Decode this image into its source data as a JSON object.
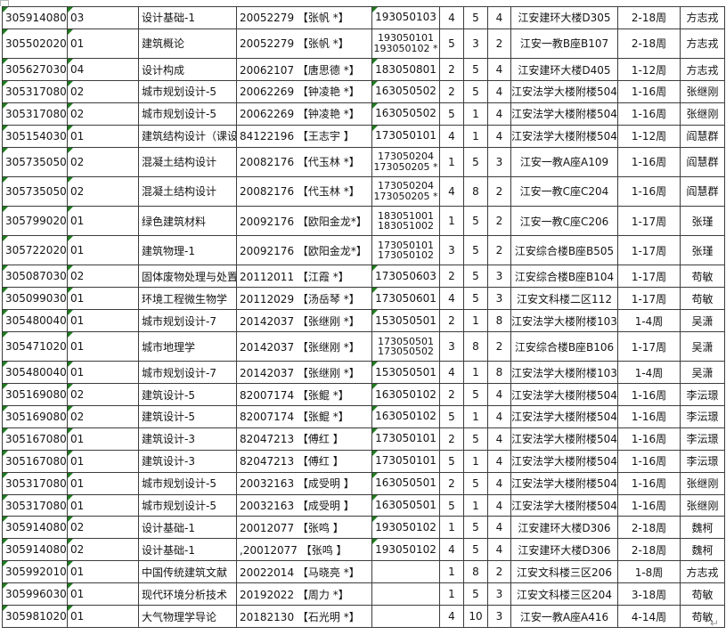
{
  "artifacts": {
    "return_mark": "↵"
  },
  "colors": {
    "grid_border": "#3d3d3d",
    "indicator_green": "#1e7d1e",
    "background": "#ffffff"
  },
  "table": {
    "rows": [
      {
        "code": "305914080",
        "cls": "03",
        "course": "设计基础-1",
        "teacher_info": "20052279 【张帆 *】",
        "classes": [
          "193050103"
        ],
        "tri5": true,
        "n1": "4",
        "n2": "5",
        "n3": "4",
        "location": "江安建环大楼D305",
        "weeks": "2-18周",
        "teacher": "方志戎"
      },
      {
        "code": "305502020",
        "cls": "01",
        "course": "建筑概论",
        "teacher_info": "20052279 【张帆 *】",
        "classes": [
          "193050101",
          "193050102 *"
        ],
        "tri5": false,
        "n1": "5",
        "n2": "3",
        "n3": "2",
        "location": "江安一教B座B107",
        "weeks": "2-18周",
        "teacher": "方志戎"
      },
      {
        "code": "305627030",
        "cls": "04",
        "course": "设计构成",
        "teacher_info": "20062107 【唐思德 *】",
        "classes": [
          "183050801"
        ],
        "tri5": true,
        "n1": "2",
        "n2": "5",
        "n3": "4",
        "location": "江安建环大楼D405",
        "weeks": "1-12周",
        "teacher": "方志戎"
      },
      {
        "code": "305317080",
        "cls": "02",
        "course": "城市规划设计-5",
        "teacher_info": "20062269 【钟凌艳 *】",
        "classes": [
          "163050502"
        ],
        "tri5": true,
        "n1": "2",
        "n2": "5",
        "n3": "4",
        "location": "江安法学大楼附楼5046",
        "weeks": "1-16周",
        "teacher": "张继刚"
      },
      {
        "code": "305317080",
        "cls": "02",
        "course": "城市规划设计-5",
        "teacher_info": "20062269 【钟凌艳 *】",
        "classes": [
          "163050502"
        ],
        "tri5": true,
        "n1": "5",
        "n2": "1",
        "n3": "4",
        "location": "江安法学大楼附楼5046",
        "weeks": "1-16周",
        "teacher": "张继刚"
      },
      {
        "code": "305154030",
        "cls": "01",
        "course": "建筑结构设计（课设）",
        "teacher_info": "84122196 【王志宇 】",
        "classes": [
          "173050101"
        ],
        "tri5": true,
        "n1": "4",
        "n2": "1",
        "n3": "4",
        "location": "江安法学大楼附楼5045-1",
        "weeks": "1-12周",
        "teacher": "阎慧群"
      },
      {
        "code": "305735050",
        "cls": "02",
        "course": "混凝土结构设计",
        "teacher_info": "20082176 【代玉林 *】",
        "classes": [
          "173050204",
          "173050205 *"
        ],
        "tri5": false,
        "n1": "1",
        "n2": "5",
        "n3": "3",
        "location": "江安一教A座A109",
        "weeks": "1-16周",
        "teacher": "阎慧群"
      },
      {
        "code": "305735050",
        "cls": "02",
        "course": "混凝土结构设计",
        "teacher_info": "20082176 【代玉林 *】",
        "classes": [
          "173050204",
          "173050205 *"
        ],
        "tri5": false,
        "n1": "4",
        "n2": "8",
        "n3": "2",
        "location": "江安一教C座C204",
        "weeks": "1-16周",
        "teacher": "阎慧群"
      },
      {
        "code": "305799020",
        "cls": "01",
        "course": "绿色建筑材料",
        "teacher_info": "20092176 【欧阳金龙*】",
        "classes": [
          "183051001",
          "183051002"
        ],
        "tri5": false,
        "n1": "1",
        "n2": "5",
        "n3": "2",
        "location": "江安一教C座C206",
        "weeks": "1-17周",
        "teacher": "张瑾"
      },
      {
        "code": "305722020",
        "cls": "01",
        "course": "建筑物理-1",
        "teacher_info": "20092176 【欧阳金龙*】",
        "classes": [
          "173050101",
          "173050102"
        ],
        "tri5": false,
        "n1": "3",
        "n2": "5",
        "n3": "2",
        "location": "江安综合楼B座B505",
        "weeks": "1-17周",
        "teacher": "张瑾"
      },
      {
        "code": "305087030",
        "cls": "02",
        "course": "固体废物处理与处置",
        "teacher_info": "20112011 【江霞 *】",
        "classes": [
          "173050603"
        ],
        "tri5": true,
        "n1": "2",
        "n2": "5",
        "n3": "3",
        "location": "江安综合楼B座B104",
        "weeks": "1-17周",
        "teacher": "苟敏"
      },
      {
        "code": "305099030",
        "cls": "01",
        "course": "环境工程微生物学",
        "teacher_info": "20112029 【汤岳琴 *】",
        "classes": [
          "173050601"
        ],
        "tri5": true,
        "n1": "4",
        "n2": "5",
        "n3": "3",
        "location": "江安文科楼二区112",
        "weeks": "1-17周",
        "teacher": "苟敏"
      },
      {
        "code": "305480040",
        "cls": "01",
        "course": "城市规划设计-7",
        "teacher_info": "20142037 【张继刚 *】",
        "classes": [
          "153050501"
        ],
        "tri5": true,
        "n1": "2",
        "n2": "1",
        "n3": "8",
        "location": "江安法学大楼附楼1030-1",
        "weeks": "1-4周",
        "teacher": "吴潇"
      },
      {
        "code": "305471020",
        "cls": "01",
        "course": "城市地理学",
        "teacher_info": "20142037 【张继刚 *】",
        "classes": [
          "173050501",
          "173050502"
        ],
        "tri5": false,
        "n1": "3",
        "n2": "8",
        "n3": "2",
        "location": "江安综合楼B座B106",
        "weeks": "1-17周",
        "teacher": "吴潇"
      },
      {
        "code": "305480040",
        "cls": "01",
        "course": "城市规划设计-7",
        "teacher_info": "20142037 【张继刚 *】",
        "classes": [
          "153050501"
        ],
        "tri5": true,
        "n1": "4",
        "n2": "1",
        "n3": "8",
        "location": "江安法学大楼附楼1030-1",
        "weeks": "1-4周",
        "teacher": "吴潇"
      },
      {
        "code": "305169080",
        "cls": "02",
        "course": "建筑设计-5",
        "teacher_info": "82007174 【张鲲 *】",
        "classes": [
          "163050102"
        ],
        "tri5": true,
        "n1": "2",
        "n2": "5",
        "n3": "4",
        "location": "江安法学大楼附楼5049",
        "weeks": "1-16周",
        "teacher": "李沄璟"
      },
      {
        "code": "305169080",
        "cls": "02",
        "course": "建筑设计-5",
        "teacher_info": "82007174 【张鲲 *】",
        "classes": [
          "163050102"
        ],
        "tri5": true,
        "n1": "5",
        "n2": "1",
        "n3": "4",
        "location": "江安法学大楼附楼5049",
        "weeks": "1-16周",
        "teacher": "李沄璟"
      },
      {
        "code": "305167080",
        "cls": "01",
        "course": "建筑设计-3",
        "teacher_info": "82047213 【傅红 】",
        "classes": [
          "173050101"
        ],
        "tri5": true,
        "n1": "2",
        "n2": "5",
        "n3": "4",
        "location": "江安法学大楼附楼5045-1",
        "weeks": "1-16周",
        "teacher": "李沄璟"
      },
      {
        "code": "305167080",
        "cls": "01",
        "course": "建筑设计-3",
        "teacher_info": "82047213 【傅红 】",
        "classes": [
          "173050101"
        ],
        "tri5": true,
        "n1": "5",
        "n2": "1",
        "n3": "4",
        "location": "江安法学大楼附楼5045-1",
        "weeks": "1-16周",
        "teacher": "李沄璟"
      },
      {
        "code": "305317080",
        "cls": "01",
        "course": "城市规划设计-5",
        "teacher_info": "20032163 【成受明 】",
        "classes": [
          "163050501"
        ],
        "tri5": true,
        "n1": "2",
        "n2": "5",
        "n3": "4",
        "location": "江安法学大楼附楼5046",
        "weeks": "1-16周",
        "teacher": "张继刚"
      },
      {
        "code": "305317080",
        "cls": "01",
        "course": "城市规划设计-5",
        "teacher_info": "20032163 【成受明 】",
        "classes": [
          "163050501"
        ],
        "tri5": true,
        "n1": "5",
        "n2": "1",
        "n3": "4",
        "location": "江安法学大楼附楼5046",
        "weeks": "1-16周",
        "teacher": "张继刚"
      },
      {
        "code": "305914080",
        "cls": "02",
        "course": "设计基础-1",
        "teacher_info": "20012077 【张鸣 】",
        "classes": [
          "193050102"
        ],
        "tri5": true,
        "n1": "1",
        "n2": "5",
        "n3": "4",
        "location": "江安建环大楼D306",
        "weeks": "2-18周",
        "teacher": "魏柯"
      },
      {
        "code": "305914080",
        "cls": "02",
        "course": "设计基础-1",
        "teacher_info": ",20012077 【张鸣 】",
        "classes": [
          "193050102"
        ],
        "tri5": true,
        "n1": "4",
        "n2": "5",
        "n3": "4",
        "location": "江安建环大楼D306",
        "weeks": "2-18周",
        "teacher": "魏柯"
      },
      {
        "code": "305992010",
        "cls": "01",
        "course": "中国传统建筑文献",
        "teacher_info": "20022014 【马晓亮 *】",
        "classes": [],
        "tri5": false,
        "n1": "1",
        "n2": "8",
        "n3": "2",
        "location": "江安文科楼三区206",
        "weeks": "1-8周",
        "teacher": "方志戎"
      },
      {
        "code": "305996030",
        "cls": "01",
        "course": "现代环境分析技术",
        "teacher_info": "20192022 【周力 *】",
        "classes": [],
        "tri5": false,
        "n1": "1",
        "n2": "5",
        "n3": "3",
        "location": "江安文科楼三区204",
        "weeks": "3-18周",
        "teacher": "苟敏"
      },
      {
        "code": "305981020",
        "cls": "01",
        "course": "大气物理学导论",
        "teacher_info": "20182130 【石光明 *】",
        "classes": [],
        "tri5": false,
        "n1": "4",
        "n2": "10",
        "n3": "3",
        "location": "江安一教A座A416",
        "weeks": "4-14周",
        "teacher": "苟敏"
      }
    ]
  }
}
